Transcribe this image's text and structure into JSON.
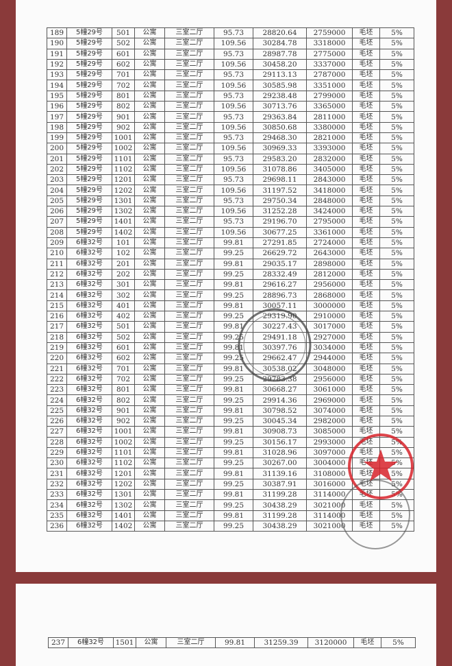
{
  "sheet1": {
    "rows": [
      [
        "189",
        "5幢29号",
        "501",
        "公寓",
        "三室二厅",
        "95.73",
        "28820.64",
        "2759000",
        "毛坯",
        "5%"
      ],
      [
        "190",
        "5幢29号",
        "502",
        "公寓",
        "三室二厅",
        "109.56",
        "30284.78",
        "3318000",
        "毛坯",
        "5%"
      ],
      [
        "191",
        "5幢29号",
        "601",
        "公寓",
        "三室二厅",
        "95.73",
        "28987.78",
        "2775000",
        "毛坯",
        "5%"
      ],
      [
        "192",
        "5幢29号",
        "602",
        "公寓",
        "三室二厅",
        "109.56",
        "30458.20",
        "3337000",
        "毛坯",
        "5%"
      ],
      [
        "193",
        "5幢29号",
        "701",
        "公寓",
        "三室二厅",
        "95.73",
        "29113.13",
        "2787000",
        "毛坯",
        "5%"
      ],
      [
        "194",
        "5幢29号",
        "702",
        "公寓",
        "三室二厅",
        "109.56",
        "30585.98",
        "3351000",
        "毛坯",
        "5%"
      ],
      [
        "195",
        "5幢29号",
        "801",
        "公寓",
        "三室二厅",
        "95.73",
        "29238.48",
        "2799000",
        "毛坯",
        "5%"
      ],
      [
        "196",
        "5幢29号",
        "802",
        "公寓",
        "三室二厅",
        "109.56",
        "30713.76",
        "3365000",
        "毛坯",
        "5%"
      ],
      [
        "197",
        "5幢29号",
        "901",
        "公寓",
        "三室二厅",
        "95.73",
        "29363.84",
        "2811000",
        "毛坯",
        "5%"
      ],
      [
        "198",
        "5幢29号",
        "902",
        "公寓",
        "三室二厅",
        "109.56",
        "30850.68",
        "3380000",
        "毛坯",
        "5%"
      ],
      [
        "199",
        "5幢29号",
        "1001",
        "公寓",
        "三室二厅",
        "95.73",
        "29468.30",
        "2821000",
        "毛坯",
        "5%"
      ],
      [
        "200",
        "5幢29号",
        "1002",
        "公寓",
        "三室二厅",
        "109.56",
        "30969.33",
        "3393000",
        "毛坯",
        "5%"
      ],
      [
        "201",
        "5幢29号",
        "1101",
        "公寓",
        "三室二厅",
        "95.73",
        "29583.20",
        "2832000",
        "毛坯",
        "5%"
      ],
      [
        "202",
        "5幢29号",
        "1102",
        "公寓",
        "三室二厅",
        "109.56",
        "31078.86",
        "3405000",
        "毛坯",
        "5%"
      ],
      [
        "203",
        "5幢29号",
        "1201",
        "公寓",
        "三室二厅",
        "95.73",
        "29698.11",
        "2843000",
        "毛坯",
        "5%"
      ],
      [
        "204",
        "5幢29号",
        "1202",
        "公寓",
        "三室二厅",
        "109.56",
        "31197.52",
        "3418000",
        "毛坯",
        "5%"
      ],
      [
        "205",
        "5幢29号",
        "1301",
        "公寓",
        "三室二厅",
        "95.73",
        "29750.34",
        "2848000",
        "毛坯",
        "5%"
      ],
      [
        "206",
        "5幢29号",
        "1302",
        "公寓",
        "三室二厅",
        "109.56",
        "31252.28",
        "3424000",
        "毛坯",
        "5%"
      ],
      [
        "207",
        "5幢29号",
        "1401",
        "公寓",
        "三室二厅",
        "95.73",
        "29196.70",
        "2795000",
        "毛坯",
        "5%"
      ],
      [
        "208",
        "5幢29号",
        "1402",
        "公寓",
        "三室二厅",
        "109.56",
        "30677.25",
        "3361000",
        "毛坯",
        "5%"
      ],
      [
        "209",
        "6幢32号",
        "101",
        "公寓",
        "三室二厅",
        "99.81",
        "27291.85",
        "2724000",
        "毛坯",
        "5%"
      ],
      [
        "210",
        "6幢32号",
        "102",
        "公寓",
        "三室二厅",
        "99.25",
        "26629.72",
        "2643000",
        "毛坯",
        "5%"
      ],
      [
        "211",
        "6幢32号",
        "201",
        "公寓",
        "三室二厅",
        "99.81",
        "29035.17",
        "2898000",
        "毛坯",
        "5%"
      ],
      [
        "212",
        "6幢32号",
        "202",
        "公寓",
        "三室二厅",
        "99.25",
        "28332.49",
        "2812000",
        "毛坯",
        "5%"
      ],
      [
        "213",
        "6幢32号",
        "301",
        "公寓",
        "三室二厅",
        "99.81",
        "29616.27",
        "2956000",
        "毛坯",
        "5%"
      ],
      [
        "214",
        "6幢32号",
        "302",
        "公寓",
        "三室二厅",
        "99.25",
        "28896.73",
        "2868000",
        "毛坯",
        "5%"
      ],
      [
        "215",
        "6幢32号",
        "401",
        "公寓",
        "三室二厅",
        "99.81",
        "30057.11",
        "3000000",
        "毛坯",
        "5%"
      ],
      [
        "216",
        "6幢32号",
        "402",
        "公寓",
        "三室二厅",
        "99.25",
        "29319.90",
        "2910000",
        "毛坯",
        "5%"
      ],
      [
        "217",
        "6幢32号",
        "501",
        "公寓",
        "三室二厅",
        "99.81",
        "30227.43",
        "3017000",
        "毛坯",
        "5%"
      ],
      [
        "218",
        "6幢32号",
        "502",
        "公寓",
        "三室二厅",
        "99.25",
        "29491.18",
        "2927000",
        "毛坯",
        "5%"
      ],
      [
        "219",
        "6幢32号",
        "601",
        "公寓",
        "三室二厅",
        "99.81",
        "30397.76",
        "3034000",
        "毛坯",
        "5%"
      ],
      [
        "220",
        "6幢32号",
        "602",
        "公寓",
        "三室二厅",
        "99.25",
        "29662.47",
        "2944000",
        "毛坯",
        "5%"
      ],
      [
        "221",
        "6幢32号",
        "701",
        "公寓",
        "三室二厅",
        "99.81",
        "30538.02",
        "3048000",
        "毛坯",
        "5%"
      ],
      [
        "222",
        "6幢32号",
        "702",
        "公寓",
        "三室二厅",
        "99.25",
        "29783.38",
        "2956000",
        "毛坯",
        "5%"
      ],
      [
        "223",
        "6幢32号",
        "801",
        "公寓",
        "三室二厅",
        "99.81",
        "30668.27",
        "3061000",
        "毛坯",
        "5%"
      ],
      [
        "224",
        "6幢32号",
        "802",
        "公寓",
        "三室二厅",
        "99.25",
        "29914.36",
        "2969000",
        "毛坯",
        "5%"
      ],
      [
        "225",
        "6幢32号",
        "901",
        "公寓",
        "三室二厅",
        "99.81",
        "30798.52",
        "3074000",
        "毛坯",
        "5%"
      ],
      [
        "226",
        "6幢32号",
        "902",
        "公寓",
        "三室二厅",
        "99.25",
        "30045.34",
        "2982000",
        "毛坯",
        "5%"
      ],
      [
        "227",
        "6幢32号",
        "1001",
        "公寓",
        "三室二厅",
        "99.81",
        "30908.73",
        "3085000",
        "毛坯",
        "5%"
      ],
      [
        "228",
        "6幢32号",
        "1002",
        "公寓",
        "三室二厅",
        "99.25",
        "30156.17",
        "2993000",
        "毛坯",
        "5%"
      ],
      [
        "229",
        "6幢32号",
        "1101",
        "公寓",
        "三室二厅",
        "99.81",
        "31028.96",
        "3097000",
        "毛坯",
        "5%"
      ],
      [
        "230",
        "6幢32号",
        "1102",
        "公寓",
        "三室二厅",
        "99.25",
        "30267.00",
        "3004000",
        "毛坯",
        "5%"
      ],
      [
        "231",
        "6幢32号",
        "1201",
        "公寓",
        "三室二厅",
        "99.81",
        "31139.16",
        "3108000",
        "毛坯",
        "5%"
      ],
      [
        "232",
        "6幢32号",
        "1202",
        "公寓",
        "三室二厅",
        "99.25",
        "30387.91",
        "3016000",
        "毛坯",
        "5%"
      ],
      [
        "233",
        "6幢32号",
        "1301",
        "公寓",
        "三室二厅",
        "99.81",
        "31199.28",
        "3114000",
        "毛坯",
        "5%"
      ],
      [
        "234",
        "6幢32号",
        "1302",
        "公寓",
        "三室二厅",
        "99.25",
        "30438.29",
        "3021000",
        "毛坯",
        "5%"
      ],
      [
        "235",
        "6幢32号",
        "1401",
        "公寓",
        "三室二厅",
        "99.81",
        "31199.28",
        "3114000",
        "毛坯",
        "5%"
      ],
      [
        "236",
        "6幢32号",
        "1402",
        "公寓",
        "三室二厅",
        "99.25",
        "30438.29",
        "3021000",
        "毛坯",
        "5%"
      ]
    ]
  },
  "sheet2": {
    "rows": [
      [
        "237",
        "6幢32号",
        "1501",
        "公寓",
        "三室二厅",
        "99.81",
        "31259.39",
        "3120000",
        "毛坯",
        "5%"
      ]
    ]
  },
  "colors": {
    "background": "#8a3a3a",
    "paper": "#fbfbfb",
    "red_stamp": "#d8242c",
    "gray_stamp": "#555555"
  }
}
